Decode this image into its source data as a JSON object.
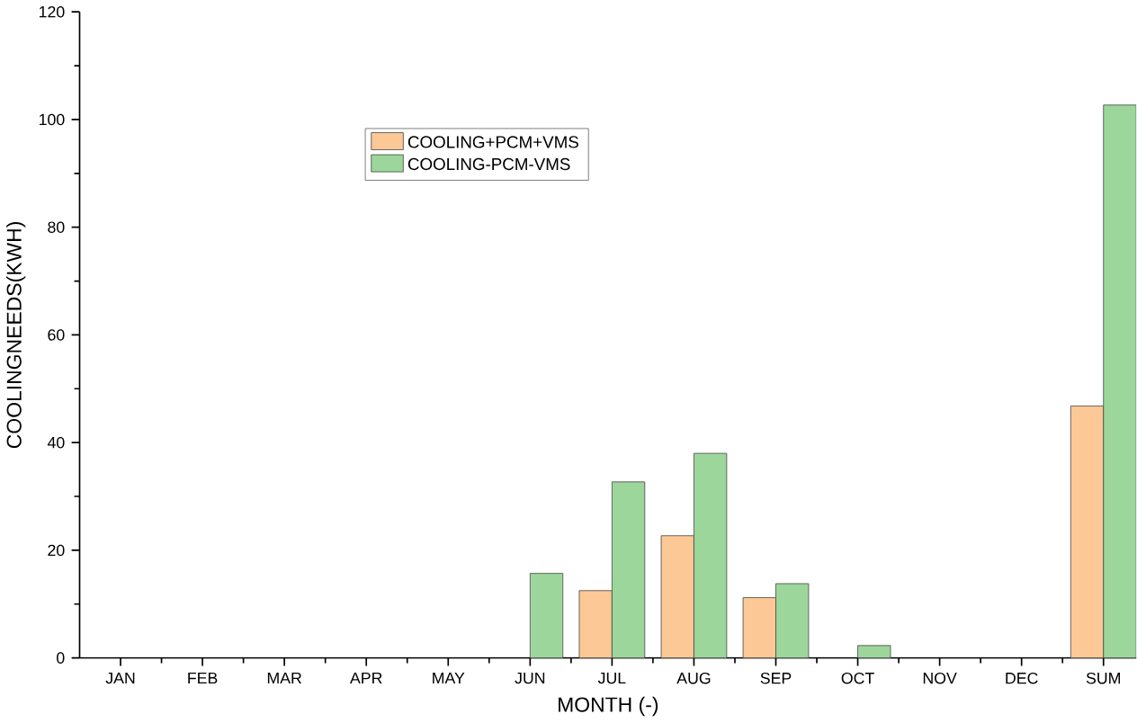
{
  "chart_data": {
    "type": "bar",
    "xlabel": "MONTH (-)",
    "ylabel": "COOLINGNEEDS(KWH)",
    "categories": [
      "JAN",
      "FEB",
      "MAR",
      "APR",
      "MAY",
      "JUN",
      "JUL",
      "AUG",
      "SEP",
      "OCT",
      "NOV",
      "DEC",
      "SUM"
    ],
    "series": [
      {
        "name": "COOLING+PCM+VMS",
        "color": "#fbc896",
        "values": [
          null,
          null,
          null,
          null,
          null,
          null,
          12.5,
          22.7,
          11.2,
          null,
          null,
          null,
          46.8
        ]
      },
      {
        "name": "COOLING-PCM-VMS",
        "color": "#9dd69b",
        "values": [
          null,
          null,
          null,
          null,
          null,
          15.7,
          32.7,
          38,
          13.8,
          2.3,
          null,
          null,
          102.7
        ]
      }
    ],
    "ylim": [
      0,
      120
    ],
    "yticks": [
      0,
      20,
      40,
      60,
      80,
      100,
      120
    ],
    "grid": false,
    "legend": "top left"
  }
}
